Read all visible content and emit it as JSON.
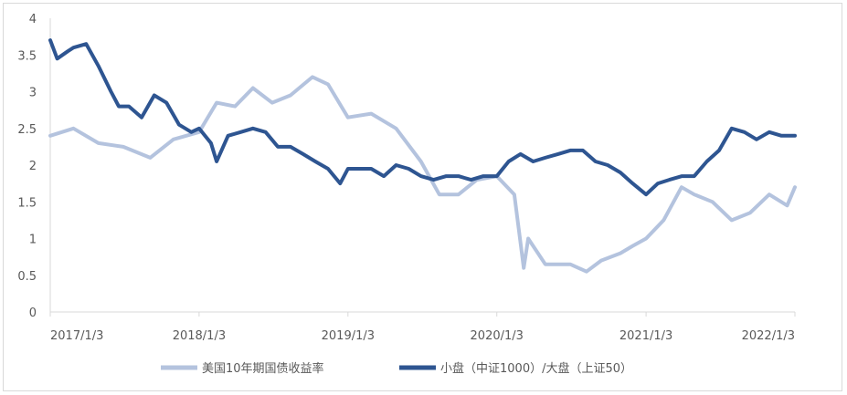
{
  "chart_data": {
    "type": "line",
    "title": "",
    "xlabel": "",
    "ylabel": "",
    "ylim": [
      0,
      4
    ],
    "yticks": [
      "0",
      "0.5",
      "1",
      "1.5",
      "2",
      "2.5",
      "3",
      "3.5",
      "4"
    ],
    "xticks": [
      "2017/1/3",
      "2018/1/3",
      "2019/1/3",
      "2020/1/3",
      "2021/1/3",
      "2022/1/3"
    ],
    "grid": false,
    "legend_position": "bottom",
    "series": [
      {
        "name": "美国10年期国债收益率",
        "color": "#b4c3de",
        "x": [
          "2017/1/3",
          "2017/3/1",
          "2017/5/1",
          "2017/7/1",
          "2017/9/5",
          "2017/11/1",
          "2018/1/3",
          "2018/2/15",
          "2018/4/1",
          "2018/5/15",
          "2018/7/1",
          "2018/8/15",
          "2018/10/8",
          "2018/11/15",
          "2019/1/3",
          "2019/3/1",
          "2019/5/1",
          "2019/7/1",
          "2019/8/15",
          "2019/10/1",
          "2019/11/15",
          "2020/1/3",
          "2020/2/15",
          "2020/3/9",
          "2020/3/20",
          "2020/5/1",
          "2020/7/1",
          "2020/8/10",
          "2020/9/15",
          "2020/11/1",
          "2020/12/1",
          "2021/1/3",
          "2021/2/15",
          "2021/3/31",
          "2021/5/1",
          "2021/6/15",
          "2021/8/1",
          "2021/9/15",
          "2021/11/1",
          "2021/12/15",
          "2022/1/3"
        ],
        "values": [
          2.4,
          2.5,
          2.3,
          2.25,
          2.1,
          2.35,
          2.45,
          2.85,
          2.8,
          3.05,
          2.85,
          2.95,
          3.2,
          3.1,
          2.65,
          2.7,
          2.5,
          2.05,
          1.6,
          1.6,
          1.8,
          1.85,
          1.6,
          0.6,
          1.0,
          0.65,
          0.65,
          0.55,
          0.7,
          0.8,
          0.9,
          1.0,
          1.25,
          1.7,
          1.6,
          1.5,
          1.25,
          1.35,
          1.6,
          1.45,
          1.7
        ]
      },
      {
        "name": "小盘（中证1000）/大盘（上证50）",
        "color": "#2e5591",
        "x": [
          "2017/1/3",
          "2017/1/20",
          "2017/2/15",
          "2017/3/1",
          "2017/4/1",
          "2017/5/1",
          "2017/6/1",
          "2017/6/20",
          "2017/7/15",
          "2017/8/15",
          "2017/9/15",
          "2017/10/15",
          "2017/11/15",
          "2017/12/15",
          "2018/1/3",
          "2018/2/1",
          "2018/2/15",
          "2018/3/15",
          "2018/4/15",
          "2018/5/15",
          "2018/6/15",
          "2018/7/15",
          "2018/8/15",
          "2018/9/15",
          "2018/10/15",
          "2018/11/15",
          "2018/12/15",
          "2019/1/3",
          "2019/2/1",
          "2019/3/1",
          "2019/4/1",
          "2019/5/1",
          "2019/6/1",
          "2019/7/1",
          "2019/8/1",
          "2019/9/1",
          "2019/10/1",
          "2019/11/1",
          "2019/12/1",
          "2020/1/3",
          "2020/2/1",
          "2020/3/1",
          "2020/4/1",
          "2020/5/1",
          "2020/6/1",
          "2020/7/1",
          "2020/8/1",
          "2020/9/1",
          "2020/10/1",
          "2020/11/1",
          "2020/12/1",
          "2021/1/3",
          "2021/2/1",
          "2021/3/1",
          "2021/4/1",
          "2021/5/1",
          "2021/6/1",
          "2021/7/1",
          "2021/8/1",
          "2021/9/1",
          "2021/10/1",
          "2021/11/1",
          "2021/12/1",
          "2022/1/3"
        ],
        "values": [
          3.7,
          3.45,
          3.55,
          3.6,
          3.65,
          3.35,
          3.0,
          2.8,
          2.8,
          2.65,
          2.95,
          2.85,
          2.55,
          2.45,
          2.5,
          2.3,
          2.05,
          2.4,
          2.45,
          2.5,
          2.45,
          2.25,
          2.25,
          2.15,
          2.05,
          1.95,
          1.75,
          1.95,
          1.95,
          1.95,
          1.85,
          2.0,
          1.95,
          1.85,
          1.8,
          1.85,
          1.85,
          1.8,
          1.85,
          1.85,
          2.05,
          2.15,
          2.05,
          2.1,
          2.15,
          2.2,
          2.2,
          2.05,
          2.0,
          1.9,
          1.75,
          1.6,
          1.75,
          1.8,
          1.85,
          1.85,
          2.05,
          2.2,
          2.5,
          2.45,
          2.35,
          2.45,
          2.4,
          2.4
        ]
      }
    ]
  }
}
